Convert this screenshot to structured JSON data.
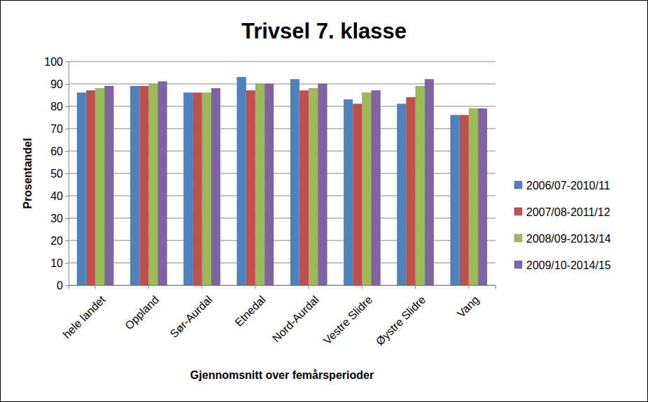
{
  "chart_data": {
    "type": "bar",
    "title": "Trivsel 7. klasse",
    "x_label": "Gjennomsnitt over femårsperioder",
    "y_label": "Prosentandel",
    "categories": [
      "hele landet",
      "Oppland",
      "Sør-Aurdal",
      "Etnedal",
      "Nord-Aurdal",
      "Vestre Slidre",
      "Øystre Slidre",
      "Vang"
    ],
    "series": [
      {
        "name": "2006/07-2010/11",
        "color": "#4f81bd",
        "values": [
          86,
          89,
          86,
          93,
          92,
          83,
          81,
          76
        ]
      },
      {
        "name": "2007/08-2011/12",
        "color": "#c0504d",
        "values": [
          87,
          89,
          86,
          87,
          87,
          81,
          84,
          76
        ]
      },
      {
        "name": "2008/09-2013/14",
        "color": "#9bbb59",
        "values": [
          88,
          90,
          86,
          90,
          88,
          86,
          89,
          79
        ]
      },
      {
        "name": "2009/10-2014/15",
        "color": "#8064a2",
        "values": [
          89,
          91,
          88,
          90,
          90,
          87,
          92,
          79
        ]
      }
    ],
    "ylim": [
      0,
      100
    ],
    "yticks": [
      0,
      10,
      20,
      30,
      40,
      50,
      60,
      70,
      80,
      90,
      100
    ],
    "grid": true,
    "legend": "right"
  }
}
